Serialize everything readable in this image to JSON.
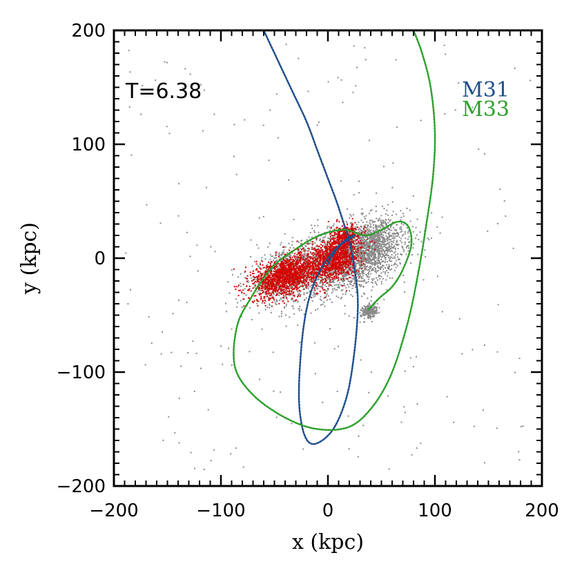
{
  "chart_data": {
    "type": "scatter",
    "title": "",
    "xlabel": "x (kpc)",
    "ylabel": "y (kpc)",
    "xlim": [
      -200,
      200
    ],
    "ylim": [
      -200,
      200
    ],
    "xticks": [
      -200,
      -100,
      0,
      100,
      200
    ],
    "yticks": [
      -200,
      -100,
      0,
      100,
      200
    ],
    "xtick_labels": [
      "−200",
      "−100",
      "0",
      "100",
      "200"
    ],
    "ytick_labels": [
      "−200",
      "−100",
      "0",
      "100",
      "200"
    ],
    "annotation": "T=6.38",
    "legend_position": "top-right",
    "series": [
      {
        "name": "M31",
        "kind": "orbit-trajectory",
        "color": "#1f4e8c",
        "points": [
          [
            -60,
            200
          ],
          [
            -50,
            180
          ],
          [
            -35,
            150
          ],
          [
            -20,
            120
          ],
          [
            -10,
            95
          ],
          [
            0,
            70
          ],
          [
            8,
            50
          ],
          [
            15,
            30
          ],
          [
            20,
            15
          ],
          [
            25,
            -10
          ],
          [
            28,
            -40
          ],
          [
            25,
            -80
          ],
          [
            18,
            -120
          ],
          [
            5,
            -150
          ],
          [
            -12,
            -163
          ],
          [
            -22,
            -155
          ],
          [
            -27,
            -125
          ],
          [
            -25,
            -80
          ],
          [
            -20,
            -45
          ],
          [
            -12,
            -20
          ],
          [
            0,
            0
          ],
          [
            15,
            15
          ],
          [
            25,
            20
          ],
          [
            10,
            10
          ],
          [
            0,
            -5
          ]
        ]
      },
      {
        "name": "M33",
        "kind": "orbit-trajectory",
        "color": "#2ca02c",
        "points": [
          [
            80,
            200
          ],
          [
            88,
            180
          ],
          [
            96,
            150
          ],
          [
            100,
            110
          ],
          [
            98,
            70
          ],
          [
            92,
            30
          ],
          [
            85,
            -10
          ],
          [
            75,
            -55
          ],
          [
            60,
            -100
          ],
          [
            42,
            -130
          ],
          [
            20,
            -148
          ],
          [
            -10,
            -150
          ],
          [
            -40,
            -140
          ],
          [
            -70,
            -120
          ],
          [
            -87,
            -95
          ],
          [
            -85,
            -60
          ],
          [
            -72,
            -35
          ],
          [
            -52,
            -8
          ],
          [
            -30,
            8
          ],
          [
            -8,
            20
          ],
          [
            15,
            25
          ],
          [
            35,
            20
          ],
          [
            50,
            25
          ],
          [
            65,
            32
          ],
          [
            75,
            28
          ],
          [
            78,
            12
          ],
          [
            70,
            -10
          ],
          [
            60,
            -25
          ],
          [
            48,
            -35
          ],
          [
            38,
            -45
          ]
        ]
      },
      {
        "name": "particles (gray)",
        "kind": "particle-cloud",
        "color": "#8a8a8a",
        "centers": [
          [
            15,
            0
          ],
          [
            40,
            10
          ],
          [
            -40,
            -15
          ],
          [
            38,
            -46
          ]
        ],
        "spread": [
          [
            45,
            25
          ],
          [
            25,
            20
          ],
          [
            28,
            18
          ],
          [
            6,
            5
          ]
        ]
      },
      {
        "name": "particles (red)",
        "kind": "particle-cloud",
        "color": "#d40000",
        "centers": [
          [
            -40,
            -15
          ],
          [
            5,
            0
          ],
          [
            15,
            20
          ]
        ],
        "spread": [
          [
            25,
            14
          ],
          [
            20,
            15
          ],
          [
            10,
            8
          ]
        ]
      }
    ]
  },
  "colors": {
    "m31": "#1f4e8c",
    "m33": "#2ca02c",
    "gray_particles": "#8a8a8a",
    "red_particles": "#d40000",
    "axes": "#000000"
  }
}
